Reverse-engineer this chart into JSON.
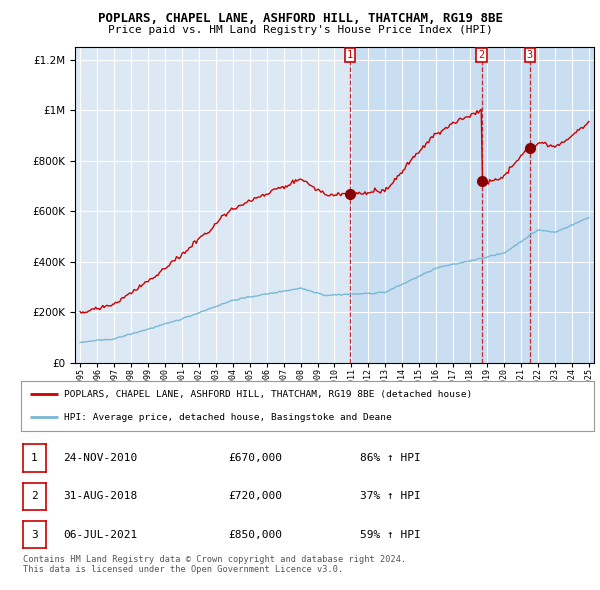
{
  "title1": "POPLARS, CHAPEL LANE, ASHFORD HILL, THATCHAM, RG19 8BE",
  "title2": "Price paid vs. HM Land Registry's House Price Index (HPI)",
  "background_color": "#dce9f5",
  "plot_bg": "#dce9f5",
  "red_line_color": "#cc0000",
  "blue_line_color": "#7ab8d4",
  "sale_dates": [
    2010.9,
    2018.67,
    2021.51
  ],
  "sale_prices": [
    670000,
    720000,
    850000
  ],
  "sale_labels": [
    "1",
    "2",
    "3"
  ],
  "legend_red": "POPLARS, CHAPEL LANE, ASHFORD HILL, THATCHAM, RG19 8BE (detached house)",
  "legend_blue": "HPI: Average price, detached house, Basingstoke and Deane",
  "table_rows": [
    [
      "1",
      "24-NOV-2010",
      "£670,000",
      "86% ↑ HPI"
    ],
    [
      "2",
      "31-AUG-2018",
      "£720,000",
      "37% ↑ HPI"
    ],
    [
      "3",
      "06-JUL-2021",
      "£850,000",
      "59% ↑ HPI"
    ]
  ],
  "footer": "Contains HM Land Registry data © Crown copyright and database right 2024.\nThis data is licensed under the Open Government Licence v3.0.",
  "ylim": [
    0,
    1250000
  ],
  "xlim_start": 1994.7,
  "xlim_end": 2025.3
}
